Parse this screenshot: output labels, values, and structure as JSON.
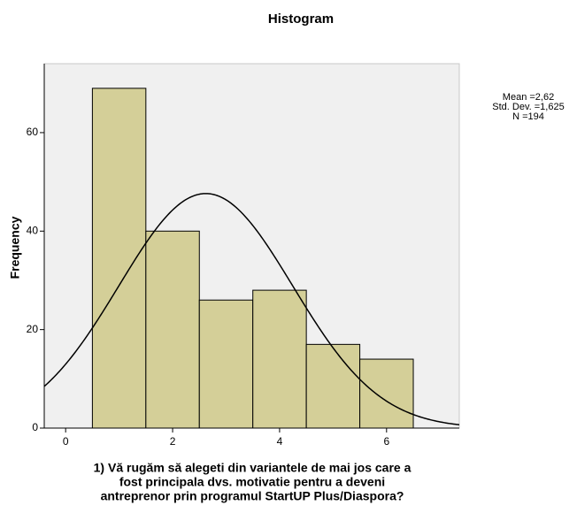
{
  "chart_data": {
    "type": "histogram",
    "title": "Histogram",
    "xlabel": [
      "1) Vă rugăm să alegeti din variantele de mai jos care a",
      "fost principala dvs. motivatie pentru a deveni",
      "antreprenor prin programul StartUP Plus/Diaspora?"
    ],
    "ylabel": "Frequency",
    "bins": [
      0.5,
      1.5,
      2.5,
      3.5,
      4.5,
      5.5,
      6.5
    ],
    "values": [
      69,
      40,
      26,
      28,
      17,
      14
    ],
    "color": "#d4cf98",
    "xlim": [
      -0.4,
      7.36
    ],
    "ylim": [
      0,
      74
    ],
    "xticks": [
      0,
      2,
      4,
      6
    ],
    "yticks": [
      0,
      20,
      40,
      60
    ],
    "normal_curve": {
      "mean": 2.62,
      "sd": 1.625,
      "n": 194
    },
    "stats_labels": [
      "Mean =2,62",
      "Std. Dev. =1,625",
      "N =194"
    ]
  }
}
